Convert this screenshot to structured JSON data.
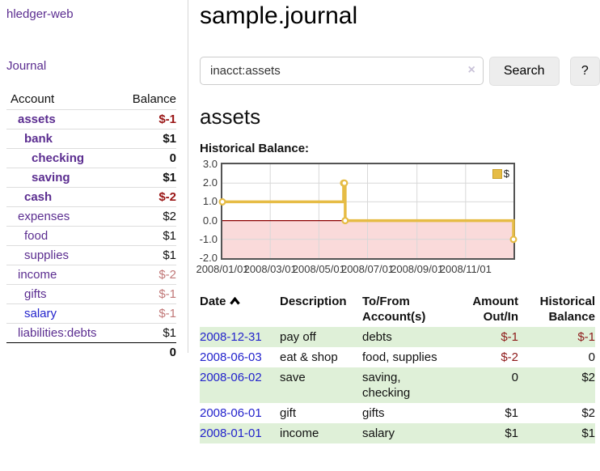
{
  "app": {
    "name": "hledger-web"
  },
  "sidebar": {
    "nav": {
      "journal_label": "Journal"
    },
    "accounts": {
      "headers": {
        "account": "Account",
        "balance": "Balance"
      },
      "rows": [
        {
          "account": "assets",
          "depth": 0,
          "balance": "$-1"
        },
        {
          "account": "bank",
          "depth": 1,
          "balance": "$1"
        },
        {
          "account": "checking",
          "depth": 2,
          "balance": "0"
        },
        {
          "account": "saving",
          "depth": 2,
          "balance": "$1"
        },
        {
          "account": "cash",
          "depth": 1,
          "balance": "$-2"
        },
        {
          "account": "expenses",
          "depth": 0,
          "balance": "$2"
        },
        {
          "account": "food",
          "depth": 1,
          "balance": "$1"
        },
        {
          "account": "supplies",
          "depth": 1,
          "balance": "$1"
        },
        {
          "account": "income",
          "depth": 0,
          "balance": "$-2"
        },
        {
          "account": "gifts",
          "depth": 1,
          "balance": "$-1"
        },
        {
          "account": "salary",
          "depth": 1,
          "balance": "$-1"
        },
        {
          "account": "liabilities:debts",
          "depth": 0,
          "balance": "$1"
        }
      ],
      "total": "0"
    }
  },
  "header": {
    "title": "sample.journal"
  },
  "search": {
    "value": "inacct:assets",
    "clear_icon": "×",
    "button_label": "Search",
    "help_label": "?"
  },
  "main": {
    "account_heading": "assets",
    "chart_label": "Historical Balance:"
  },
  "chart_data": {
    "type": "line",
    "title": "Historical Balance",
    "step": true,
    "x_range": [
      "2008-01-01",
      "2008-12-31"
    ],
    "ylim": [
      -2.0,
      3.0
    ],
    "y_ticks": [
      3.0,
      2.0,
      1.0,
      0.0,
      -1.0,
      -2.0
    ],
    "x_ticks": [
      {
        "date": "2008-01-01",
        "label": "2008/01/01"
      },
      {
        "date": "2008-03-01",
        "label": "2008/03/01"
      },
      {
        "date": "2008-05-01",
        "label": "2008/05/01"
      },
      {
        "date": "2008-07-01",
        "label": "2008/07/01"
      },
      {
        "date": "2008-09-01",
        "label": "2008/09/01"
      },
      {
        "date": "2008-11-01",
        "label": "2008/11/01"
      }
    ],
    "series": [
      {
        "name": "$",
        "color": "#e6bc45",
        "points": [
          {
            "date": "2008-01-01",
            "value": 1
          },
          {
            "date": "2008-06-01",
            "value": 2
          },
          {
            "date": "2008-06-02",
            "value": 2
          },
          {
            "date": "2008-06-03",
            "value": 0
          },
          {
            "date": "2008-12-31",
            "value": -1
          }
        ]
      }
    ],
    "legend": [
      {
        "label": "$",
        "color": "#e6bc45"
      }
    ],
    "grid_on": true,
    "grid_color": "#d8d8d8",
    "zero_line_color": "#8b0000",
    "negative_region_color": "#fadada",
    "legend_position": "top-right"
  },
  "register": {
    "headers": {
      "date": "Date",
      "description": "Description",
      "accounts": "To/From Account(s)",
      "amount": "Amount Out/In",
      "balance": "Historical Balance"
    },
    "rows": [
      {
        "date": "2008-12-31",
        "description": "pay off",
        "accounts": "debts",
        "amount": "$-1",
        "balance": "$-1"
      },
      {
        "date": "2008-06-03",
        "description": "eat & shop",
        "accounts": "food, supplies",
        "amount": "$-2",
        "balance": "0"
      },
      {
        "date": "2008-06-02",
        "description": "save",
        "accounts": "saving, checking",
        "amount": "0",
        "balance": "$2"
      },
      {
        "date": "2008-06-01",
        "description": "gift",
        "accounts": "gifts",
        "amount": "$1",
        "balance": "$2"
      },
      {
        "date": "2008-01-01",
        "description": "income",
        "accounts": "salary",
        "amount": "$1",
        "balance": "$1"
      }
    ]
  },
  "colors": {
    "link_purple": "#5b2d90",
    "link_blue": "#2323cc",
    "negative_strong": "#991414",
    "negative_muted": "#c17878",
    "stripe_green": "#dff0d8",
    "chart_gold": "#e6bc45",
    "chart_negative_bg": "#fadada",
    "zero_line": "#8b0000"
  }
}
